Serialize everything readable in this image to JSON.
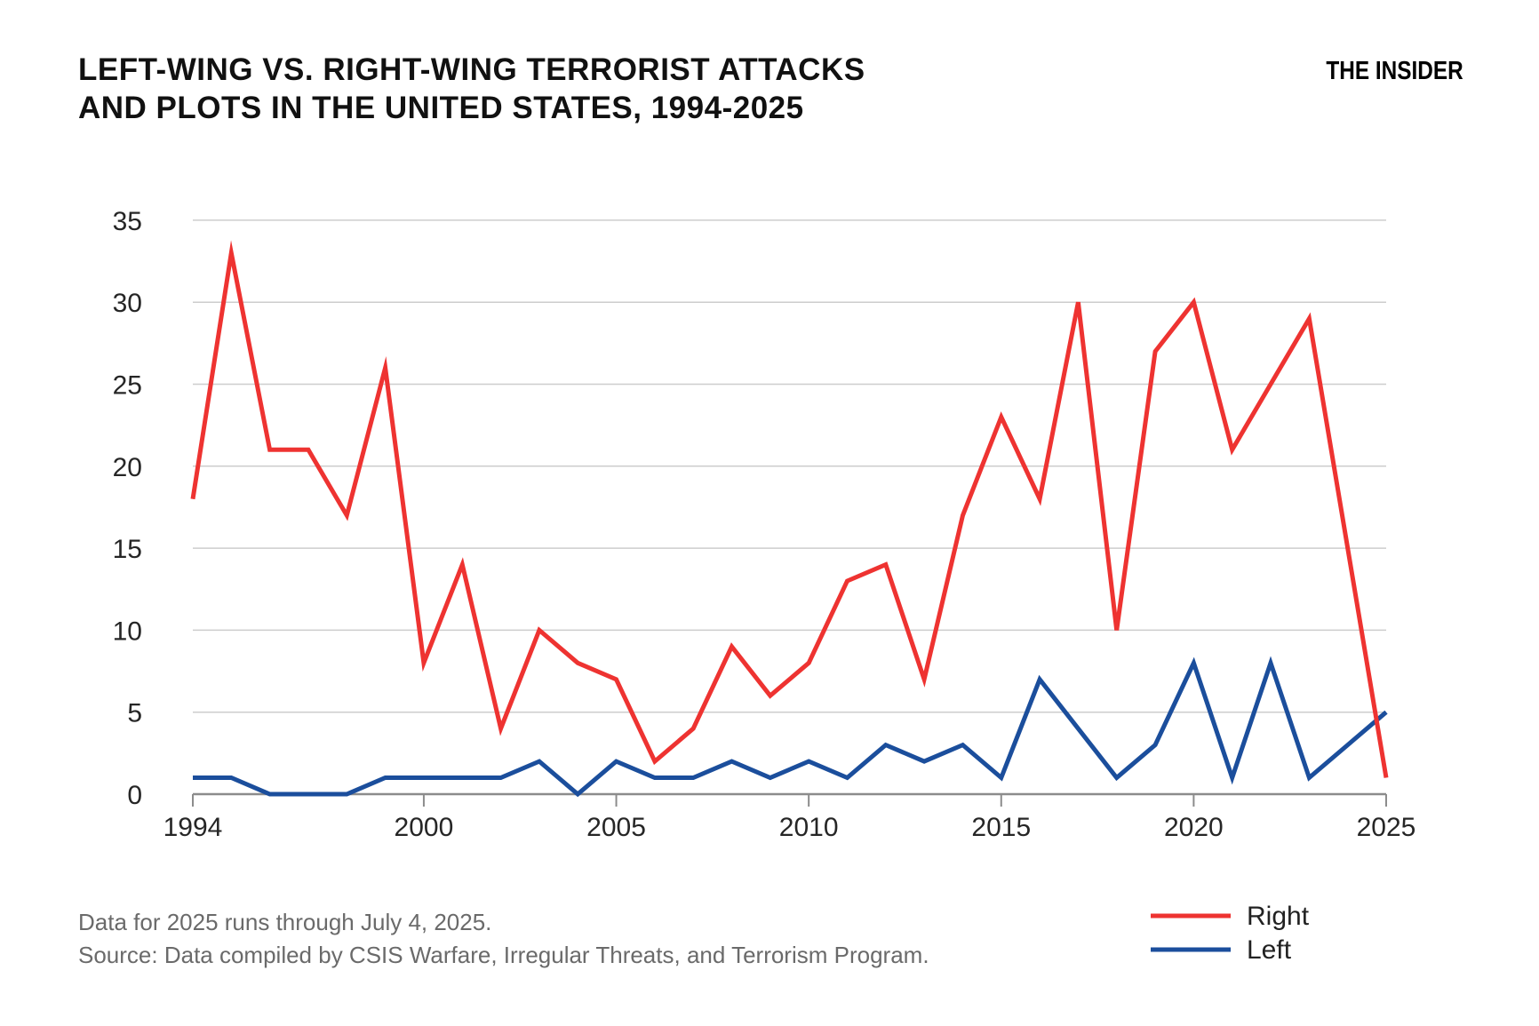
{
  "header": {
    "title_line1": "LEFT-WING VS. RIGHT-WING TERRORIST ATTACKS",
    "title_line2": "AND PLOTS IN THE UNITED STATES, 1994-2025",
    "logo": "THE INSIDER"
  },
  "footer": {
    "note": "Data for 2025 runs through July 4, 2025.",
    "source": "Source: Data compiled by CSIS Warfare, Irregular Threats, and Terrorism Program."
  },
  "chart_data": {
    "type": "line",
    "x": [
      1994,
      1995,
      1996,
      1997,
      1998,
      1999,
      2000,
      2001,
      2002,
      2003,
      2004,
      2005,
      2006,
      2007,
      2008,
      2009,
      2010,
      2011,
      2012,
      2013,
      2014,
      2015,
      2016,
      2017,
      2018,
      2019,
      2020,
      2021,
      2022,
      2023,
      2024,
      2025
    ],
    "series": [
      {
        "name": "Right",
        "color": "#ee3331",
        "values": [
          18,
          33,
          21,
          21,
          17,
          26,
          8,
          14,
          4,
          10,
          8,
          7,
          2,
          4,
          9,
          6,
          8,
          13,
          14,
          7,
          17,
          23,
          18,
          30,
          10,
          27,
          30,
          21,
          25,
          29,
          15,
          1
        ]
      },
      {
        "name": "Left",
        "color": "#1b4e9c",
        "values": [
          1,
          1,
          0,
          0,
          0,
          1,
          1,
          1,
          1,
          2,
          0,
          2,
          1,
          1,
          2,
          1,
          2,
          1,
          3,
          2,
          3,
          1,
          7,
          4,
          1,
          3,
          8,
          1,
          8,
          1,
          3,
          5
        ]
      }
    ],
    "title": "LEFT-WING VS. RIGHT-WING TERRORIST ATTACKS AND PLOTS IN THE UNITED STATES, 1994-2025",
    "xlabel": "",
    "ylabel": "",
    "ylim": [
      0,
      35
    ],
    "yticks": [
      0,
      5,
      10,
      15,
      20,
      25,
      30,
      35
    ],
    "xticks": [
      1994,
      2000,
      2005,
      2010,
      2015,
      2020,
      2025
    ],
    "grid": "horizontal-only",
    "legend_position": "bottom-right",
    "legend_entries": [
      "Right",
      "Left"
    ],
    "style_colors": {
      "grid": "#cdcdcd",
      "axis": "#8c8c8c",
      "tick_label": "#262626",
      "footer_text": "#6a6a6a"
    }
  }
}
